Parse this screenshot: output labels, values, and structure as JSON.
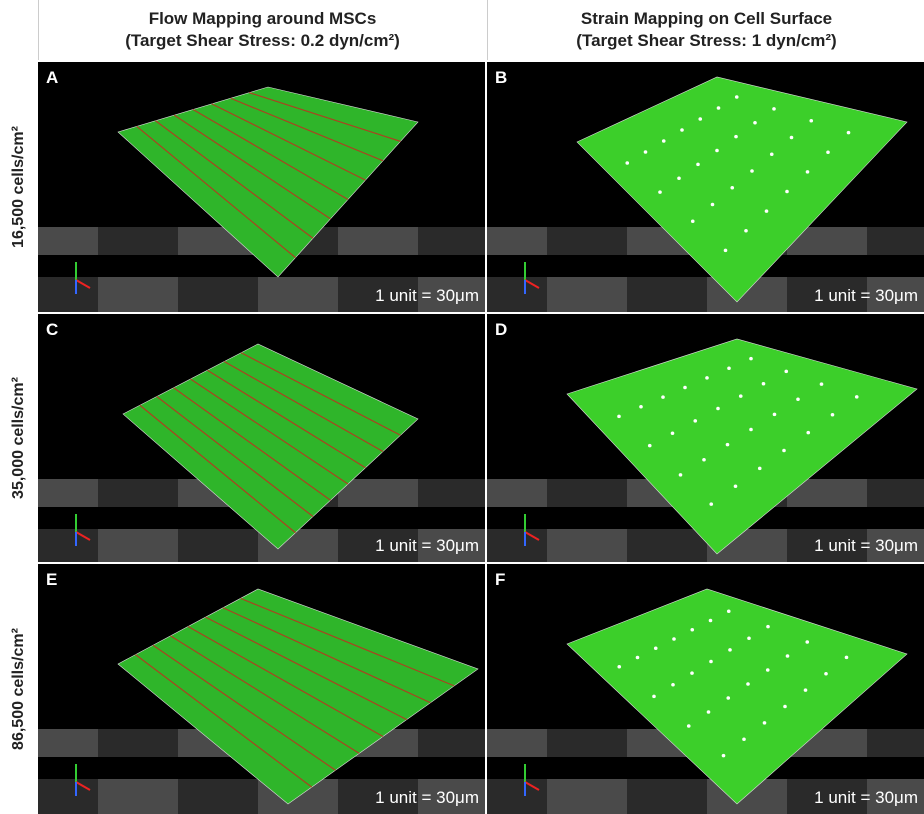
{
  "columns": [
    {
      "title": "Flow Mapping around MSCs",
      "subtitle": "(Target Shear Stress: 0.2 dyn/cm²)"
    },
    {
      "title": "Strain Mapping on Cell Surface",
      "subtitle": "(Target Shear Stress: 1 dyn/cm²)"
    }
  ],
  "rows": [
    {
      "label": "16,500 cells/cm²",
      "panels": [
        {
          "letter": "A",
          "scale": "1 unit = 30μm"
        },
        {
          "letter": "B",
          "scale": "1 unit = 30μm"
        }
      ]
    },
    {
      "label": "35,000 cells/cm²",
      "panels": [
        {
          "letter": "C",
          "scale": "1 unit = 30μm"
        },
        {
          "letter": "D",
          "scale": "1 unit = 30μm"
        }
      ]
    },
    {
      "label": "86,500 cells/cm²",
      "panels": [
        {
          "letter": "E",
          "scale": "1 unit = 30μm"
        },
        {
          "letter": "F",
          "scale": "1 unit = 30μm"
        }
      ]
    }
  ]
}
